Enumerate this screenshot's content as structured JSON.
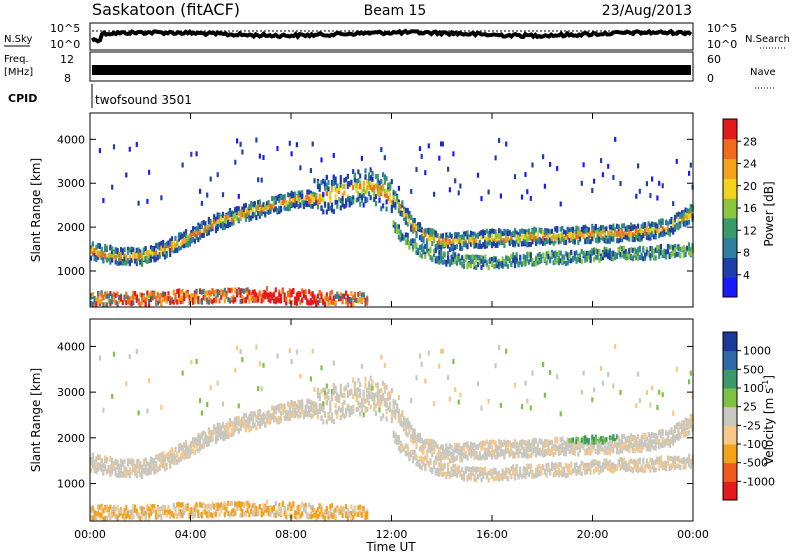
{
  "header": {
    "station": "Saskatoon (fitACF)",
    "beam": "Beam 15",
    "date": "23/Aug/2013"
  },
  "top_panels": {
    "nsky_label": "N.Sky",
    "nsky_ticks": [
      "10^5",
      "10^0"
    ],
    "nsearch_label": "N.Search",
    "nsearch_ticks": [
      "10^5",
      "10^0"
    ],
    "freq_label_1": "Freq.",
    "freq_label_2": "[MHz]",
    "freq_ticks": [
      "12",
      "8"
    ],
    "nave_label": "Nave",
    "nave_ticks": [
      "60",
      "0"
    ],
    "cpid_label": "CPID",
    "cpid_value": "twofsound 3501"
  },
  "colors": {
    "power_scale": [
      "#1a1aff",
      "#1f3fa8",
      "#2f7fa0",
      "#3a9a6a",
      "#8cc63f",
      "#f5d21c",
      "#f4a11c",
      "#f26a1c",
      "#e31a1c"
    ],
    "velocity_scale": [
      "#e31a1c",
      "#f05a1c",
      "#f4a11c",
      "#f7c88a",
      "#c8c8c0",
      "#7dc242",
      "#3a9a6a",
      "#2f6aa8",
      "#1a3a9a"
    ]
  },
  "chart_data": [
    {
      "type": "heatmap",
      "title": "Power",
      "ylabel": "Slant Range [km]",
      "xlabel": "Time UT",
      "x_ticks": [
        "00:00",
        "04:00",
        "08:00",
        "12:00",
        "16:00",
        "20:00",
        "00:00"
      ],
      "y_ticks": [
        1000,
        2000,
        3000,
        4000
      ],
      "ylim": [
        180,
        4600
      ],
      "colorbar_label": "Power [dB]",
      "colorbar_ticks": [
        "4",
        "8",
        "12",
        "16",
        "20",
        "24",
        "28"
      ],
      "bands": [
        {
          "name": "main",
          "hours": [
            0,
            1,
            2,
            3,
            4,
            5,
            6,
            7,
            8,
            9,
            10,
            11,
            12,
            13,
            14,
            15,
            16,
            17,
            18,
            19,
            20,
            21,
            22,
            23,
            24
          ],
          "range_km": [
            1450,
            1350,
            1320,
            1500,
            1800,
            2100,
            2300,
            2450,
            2600,
            2650,
            2800,
            2950,
            2700,
            1900,
            1650,
            1700,
            1750,
            1750,
            1800,
            1800,
            1850,
            1850,
            1900,
            2000,
            2350
          ]
        },
        {
          "name": "lower",
          "hours": [
            12,
            13,
            14,
            15,
            16,
            17,
            18,
            19,
            20,
            21,
            22,
            23,
            24
          ],
          "range_km": [
            2000,
            1500,
            1300,
            1200,
            1200,
            1250,
            1300,
            1300,
            1350,
            1400,
            1400,
            1450,
            1500
          ]
        },
        {
          "name": "near",
          "hours": [
            0,
            2,
            4,
            6,
            7,
            8,
            9,
            10,
            11
          ],
          "range_km": [
            350,
            330,
            380,
            400,
            420,
            380,
            350,
            330,
            320
          ]
        }
      ]
    },
    {
      "type": "heatmap",
      "title": "Velocity",
      "ylabel": "Slant Range [km]",
      "xlabel": "Time UT",
      "x_ticks": [
        "00:00",
        "04:00",
        "08:00",
        "12:00",
        "16:00",
        "20:00",
        "00:00"
      ],
      "y_ticks": [
        1000,
        2000,
        3000,
        4000
      ],
      "ylim": [
        180,
        4600
      ],
      "colorbar_label": "Velocity [m s^-1]",
      "colorbar_ticks": [
        "-1000",
        "-500",
        "-100",
        "-25",
        "25",
        "100",
        "500",
        "1000"
      ]
    }
  ],
  "labels": {
    "ylabel_power": "Slant Range [km]",
    "ylabel_vel": "Slant Range [km]",
    "xlabel": "Time UT",
    "power_cb": "Power [dB]",
    "vel_cb_1": "Velocity",
    "vel_cb_2": "[m s",
    "vel_cb_sup": "-1",
    "vel_cb_3": "]"
  }
}
